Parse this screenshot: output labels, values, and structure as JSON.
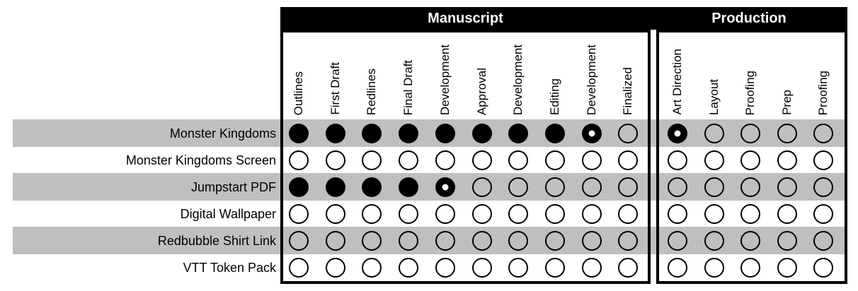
{
  "colors": {
    "background": "#ffffff",
    "stripe": "#bfbfbf",
    "header_bg": "#000000",
    "header_text": "#ffffff",
    "circle_stroke": "#000000",
    "text": "#000000"
  },
  "symbols": {
    "done": "filled-circle",
    "in_progress": "filled-circle-white-center",
    "not_started": "outline-circle"
  },
  "chart_data": {
    "type": "table",
    "column_groups": [
      {
        "label": "Manuscript",
        "columns": [
          "Outlines",
          "First Draft",
          "Redlines",
          "Final Draft",
          "Development",
          "Approval",
          "Development",
          "Editing",
          "Development",
          "Finalized"
        ]
      },
      {
        "label": "Production",
        "columns": [
          "Art Direction",
          "Layout",
          "Proofing",
          "Prep",
          "Proofing"
        ]
      }
    ],
    "rows": [
      {
        "label": "Monster Kingdoms",
        "manuscript": [
          "done",
          "done",
          "done",
          "done",
          "done",
          "done",
          "done",
          "done",
          "in_progress",
          "not_started"
        ],
        "production": [
          "in_progress",
          "not_started",
          "not_started",
          "not_started",
          "not_started"
        ]
      },
      {
        "label": "Monster Kingdoms Screen",
        "manuscript": [
          "not_started",
          "not_started",
          "not_started",
          "not_started",
          "not_started",
          "not_started",
          "not_started",
          "not_started",
          "not_started",
          "not_started"
        ],
        "production": [
          "not_started",
          "not_started",
          "not_started",
          "not_started",
          "not_started"
        ]
      },
      {
        "label": "Jumpstart PDF",
        "manuscript": [
          "done",
          "done",
          "done",
          "done",
          "in_progress",
          "not_started",
          "not_started",
          "not_started",
          "not_started",
          "not_started"
        ],
        "production": [
          "not_started",
          "not_started",
          "not_started",
          "not_started",
          "not_started"
        ]
      },
      {
        "label": "Digital Wallpaper",
        "manuscript": [
          "not_started",
          "not_started",
          "not_started",
          "not_started",
          "not_started",
          "not_started",
          "not_started",
          "not_started",
          "not_started",
          "not_started"
        ],
        "production": [
          "not_started",
          "not_started",
          "not_started",
          "not_started",
          "not_started"
        ]
      },
      {
        "label": "Redbubble Shirt Link",
        "manuscript": [
          "not_started",
          "not_started",
          "not_started",
          "not_started",
          "not_started",
          "not_started",
          "not_started",
          "not_started",
          "not_started",
          "not_started"
        ],
        "production": [
          "not_started",
          "not_started",
          "not_started",
          "not_started",
          "not_started"
        ]
      },
      {
        "label": "VTT Token Pack",
        "manuscript": [
          "not_started",
          "not_started",
          "not_started",
          "not_started",
          "not_started",
          "not_started",
          "not_started",
          "not_started",
          "not_started",
          "not_started"
        ],
        "production": [
          "not_started",
          "not_started",
          "not_started",
          "not_started",
          "not_started"
        ]
      }
    ]
  }
}
